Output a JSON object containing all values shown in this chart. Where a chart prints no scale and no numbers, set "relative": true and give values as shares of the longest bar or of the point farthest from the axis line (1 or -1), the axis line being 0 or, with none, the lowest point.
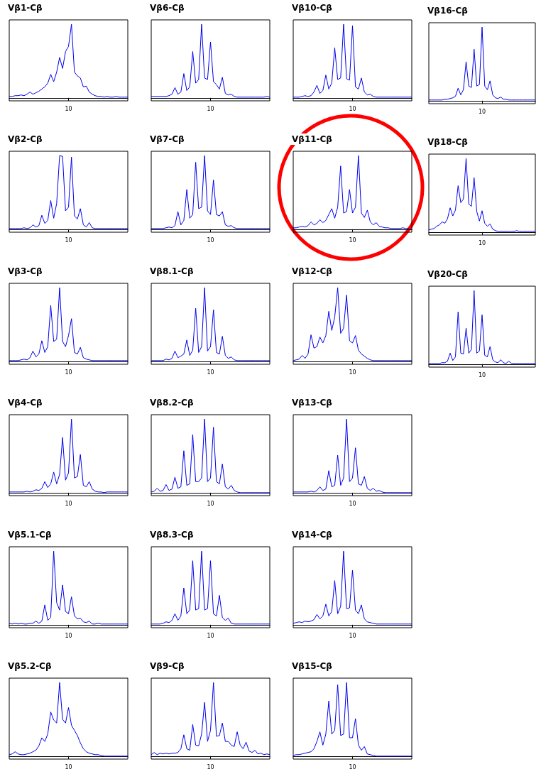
{
  "chart_data": [
    {
      "type": "line",
      "title": "Vβ1-Cβ",
      "relative": true,
      "marker": "none",
      "annotations": [
        "10"
      ],
      "categories": [
        null,
        null,
        null,
        null,
        null,
        null,
        null,
        null,
        null,
        null,
        null,
        null,
        null,
        null,
        null,
        null,
        null,
        null,
        null,
        null,
        null,
        null,
        null,
        null,
        null,
        null,
        null,
        null,
        null,
        null,
        null,
        null,
        null,
        null,
        null,
        null,
        null,
        null,
        null,
        null,
        null
      ],
      "series": [
        {
          "color": "#0000ee",
          "values": [
            0.02,
            0.02,
            0.03,
            0.03,
            0.04,
            0.03,
            0.05,
            0.08,
            0.05,
            0.07,
            0.09,
            0.12,
            0.15,
            0.2,
            0.32,
            0.22,
            0.35,
            0.55,
            0.4,
            0.63,
            0.7,
            1.0,
            0.35,
            0.3,
            0.27,
            0.15,
            0.16,
            0.08,
            0.05,
            0.03,
            0.02,
            0.02,
            0.01,
            0.02,
            0.01,
            0.01,
            0.02,
            0.01,
            0.01,
            0.01,
            0.01
          ]
        }
      ]
    },
    {
      "type": "line",
      "title": "Vβ6-Cβ",
      "relative": true,
      "marker": "none",
      "annotations": [
        "10"
      ],
      "categories": [
        null,
        null,
        null,
        null,
        null,
        null,
        null,
        null,
        null,
        null,
        null,
        null,
        null,
        null,
        null,
        null,
        null,
        null,
        null,
        null,
        null,
        null,
        null,
        null,
        null,
        null,
        null,
        null,
        null,
        null,
        null,
        null,
        null,
        null,
        null,
        null,
        null,
        null,
        null,
        null,
        null
      ],
      "series": [
        {
          "color": "#0000ee",
          "values": [
            0.02,
            0.02,
            0.02,
            0.02,
            0.02,
            0.02,
            0.03,
            0.05,
            0.14,
            0.05,
            0.08,
            0.33,
            0.1,
            0.15,
            0.63,
            0.2,
            0.25,
            1.0,
            0.27,
            0.25,
            0.76,
            0.22,
            0.18,
            0.12,
            0.28,
            0.06,
            0.04,
            0.05,
            0.02,
            0.01,
            0.01,
            0.01,
            0.01,
            0.01,
            0.01,
            0.01,
            0.01,
            0.01,
            0.01,
            0.02,
            0.01
          ]
        }
      ]
    },
    {
      "type": "line",
      "title": "Vβ10-Cβ",
      "relative": true,
      "marker": "none",
      "annotations": [
        "10"
      ],
      "categories": [
        null,
        null,
        null,
        null,
        null,
        null,
        null,
        null,
        null,
        null,
        null,
        null,
        null,
        null,
        null,
        null,
        null,
        null,
        null,
        null,
        null,
        null,
        null,
        null,
        null,
        null,
        null,
        null,
        null,
        null,
        null,
        null,
        null,
        null,
        null,
        null,
        null,
        null,
        null,
        null,
        null
      ],
      "series": [
        {
          "color": "#0000ee",
          "values": [
            0.01,
            0.01,
            0.01,
            0.02,
            0.03,
            0.02,
            0.03,
            0.08,
            0.17,
            0.06,
            0.1,
            0.31,
            0.12,
            0.2,
            0.68,
            0.25,
            0.27,
            1.0,
            0.26,
            0.24,
            0.98,
            0.15,
            0.12,
            0.27,
            0.08,
            0.04,
            0.05,
            0.02,
            0.01,
            0.01,
            0.01,
            0.01,
            0.01,
            0.01,
            0.01,
            0.01,
            0.01,
            0.01,
            0.01,
            0.01,
            0.01
          ]
        }
      ]
    },
    {
      "type": "line",
      "title": "Vβ16-Cβ",
      "relative": true,
      "marker": "none",
      "annotations": [
        "10"
      ],
      "categories": [
        null,
        null,
        null,
        null,
        null,
        null,
        null,
        null,
        null,
        null,
        null,
        null,
        null,
        null,
        null,
        null,
        null,
        null,
        null,
        null,
        null,
        null,
        null,
        null,
        null,
        null,
        null,
        null,
        null,
        null,
        null,
        null,
        null,
        null,
        null,
        null,
        null,
        null,
        null,
        null,
        null
      ],
      "series": [
        {
          "color": "#0000ee",
          "values": [
            0.01,
            0.01,
            0.01,
            0.01,
            0.01,
            0.01,
            0.02,
            0.02,
            0.03,
            0.04,
            0.06,
            0.17,
            0.08,
            0.15,
            0.53,
            0.2,
            0.18,
            0.7,
            0.2,
            0.22,
            1.0,
            0.2,
            0.15,
            0.27,
            0.08,
            0.04,
            0.03,
            0.05,
            0.02,
            0.02,
            0.01,
            0.01,
            0.01,
            0.01,
            0.01,
            0.01,
            0.01,
            0.01,
            0.01,
            0.01,
            0.01
          ]
        }
      ]
    },
    {
      "type": "line",
      "title": "Vβ2-Cβ",
      "relative": true,
      "marker": "none",
      "annotations": [
        "10"
      ],
      "categories": [
        null,
        null,
        null,
        null,
        null,
        null,
        null,
        null,
        null,
        null,
        null,
        null,
        null,
        null,
        null,
        null,
        null,
        null,
        null,
        null,
        null,
        null,
        null,
        null,
        null,
        null,
        null,
        null,
        null,
        null,
        null,
        null,
        null,
        null,
        null,
        null,
        null,
        null,
        null,
        null,
        null
      ],
      "series": [
        {
          "color": "#0000ee",
          "values": [
            0.01,
            0.01,
            0.01,
            0.01,
            0.01,
            0.02,
            0.01,
            0.02,
            0.06,
            0.03,
            0.05,
            0.19,
            0.08,
            0.12,
            0.39,
            0.15,
            0.35,
            1.0,
            0.99,
            0.25,
            0.3,
            0.98,
            0.18,
            0.14,
            0.28,
            0.06,
            0.03,
            0.09,
            0.02,
            0.01,
            0.01,
            0.01,
            0.01,
            0.01,
            0.01,
            0.01,
            0.01,
            0.01,
            0.01,
            0.01,
            0.01
          ]
        }
      ]
    },
    {
      "type": "line",
      "title": "Vβ7-Cβ",
      "relative": true,
      "marker": "none",
      "annotations": [
        "10"
      ],
      "categories": [
        null,
        null,
        null,
        null,
        null,
        null,
        null,
        null,
        null,
        null,
        null,
        null,
        null,
        null,
        null,
        null,
        null,
        null,
        null,
        null,
        null,
        null,
        null,
        null,
        null,
        null,
        null,
        null,
        null,
        null,
        null,
        null,
        null,
        null,
        null,
        null,
        null,
        null,
        null,
        null,
        null
      ],
      "series": [
        {
          "color": "#0000ee",
          "values": [
            0.01,
            0.01,
            0.01,
            0.01,
            0.01,
            0.02,
            0.03,
            0.02,
            0.05,
            0.24,
            0.06,
            0.12,
            0.54,
            0.15,
            0.2,
            0.91,
            0.28,
            0.3,
            1.0,
            0.25,
            0.2,
            0.67,
            0.2,
            0.18,
            0.24,
            0.06,
            0.04,
            0.05,
            0.02,
            0.01,
            0.01,
            0.01,
            0.01,
            0.01,
            0.01,
            0.01,
            0.01,
            0.01,
            0.01,
            0.01,
            0.01
          ]
        }
      ]
    },
    {
      "type": "line",
      "title": "Vβ11-Cβ",
      "relative": true,
      "marker": "none",
      "annotations": [
        "10"
      ],
      "categories": [
        null,
        null,
        null,
        null,
        null,
        null,
        null,
        null,
        null,
        null,
        null,
        null,
        null,
        null,
        null,
        null,
        null,
        null,
        null,
        null,
        null,
        null,
        null,
        null,
        null,
        null,
        null,
        null,
        null,
        null,
        null,
        null,
        null,
        null,
        null,
        null,
        null,
        null,
        null,
        null,
        null
      ],
      "series": [
        {
          "color": "#0000ee",
          "values": [
            0.02,
            0.02,
            0.03,
            0.04,
            0.03,
            0.05,
            0.1,
            0.06,
            0.08,
            0.13,
            0.09,
            0.12,
            0.2,
            0.28,
            0.15,
            0.3,
            0.86,
            0.22,
            0.24,
            0.54,
            0.22,
            0.3,
            1.0,
            0.22,
            0.16,
            0.26,
            0.1,
            0.06,
            0.09,
            0.04,
            0.03,
            0.02,
            0.02,
            0.01,
            0.01,
            0.01,
            0.01,
            0.02,
            0.01,
            0.01,
            null
          ]
        }
      ]
    },
    {
      "type": "line",
      "title": "Vβ18-Cβ",
      "relative": true,
      "marker": "none",
      "annotations": [
        "10"
      ],
      "categories": [
        null,
        null,
        null,
        null,
        null,
        null,
        null,
        null,
        null,
        null,
        null,
        null,
        null,
        null,
        null,
        null,
        null,
        null,
        null,
        null,
        null,
        null,
        null,
        null,
        null,
        null,
        null,
        null,
        null,
        null,
        null,
        null,
        null,
        null,
        null,
        null,
        null,
        null,
        null,
        null,
        null
      ],
      "series": [
        {
          "color": "#0000ee",
          "values": [
            0.03,
            0.04,
            0.05,
            0.08,
            0.1,
            0.14,
            0.12,
            0.18,
            0.33,
            0.22,
            0.3,
            0.63,
            0.4,
            0.45,
            1.0,
            0.38,
            0.35,
            0.74,
            0.28,
            0.15,
            0.29,
            0.12,
            0.08,
            0.11,
            0.04,
            0.02,
            0.01,
            0.01,
            0.01,
            0.01,
            0.01,
            0.01,
            0.01,
            0.02,
            0.01,
            0.01,
            0.01,
            0.01,
            0.01,
            0.01,
            0.01
          ]
        }
      ]
    },
    {
      "type": "line",
      "title": "Vβ3-Cβ",
      "relative": true,
      "marker": "none",
      "annotations": [
        "10"
      ],
      "categories": [
        null,
        null,
        null,
        null,
        null,
        null,
        null,
        null,
        null,
        null,
        null,
        null,
        null,
        null,
        null,
        null,
        null,
        null,
        null,
        null,
        null,
        null,
        null,
        null,
        null,
        null,
        null,
        null,
        null,
        null,
        null,
        null,
        null,
        null,
        null,
        null,
        null,
        null,
        null,
        null,
        null
      ],
      "series": [
        {
          "color": "#0000ee",
          "values": [
            0.01,
            0.01,
            0.01,
            0.01,
            0.02,
            0.03,
            0.02,
            0.05,
            0.14,
            0.06,
            0.1,
            0.28,
            0.12,
            0.2,
            0.76,
            0.27,
            0.3,
            1.0,
            0.27,
            0.2,
            0.35,
            0.58,
            0.12,
            0.1,
            0.19,
            0.05,
            0.03,
            0.02,
            0.01,
            0.01,
            0.01,
            0.01,
            0.01,
            0.01,
            0.01,
            0.01,
            0.01,
            0.01,
            0.01,
            0.01,
            0.01
          ]
        }
      ]
    },
    {
      "type": "line",
      "title": "Vβ8.1-Cβ",
      "relative": true,
      "marker": "none",
      "annotations": [
        "10"
      ],
      "categories": [
        null,
        null,
        null,
        null,
        null,
        null,
        null,
        null,
        null,
        null,
        null,
        null,
        null,
        null,
        null,
        null,
        null,
        null,
        null,
        null,
        null,
        null,
        null,
        null,
        null,
        null,
        null,
        null,
        null,
        null,
        null,
        null,
        null,
        null,
        null,
        null,
        null,
        null,
        null,
        null,
        null
      ],
      "series": [
        {
          "color": "#0000ee",
          "values": [
            0.01,
            0.01,
            0.01,
            0.01,
            0.01,
            0.03,
            0.02,
            0.04,
            0.14,
            0.05,
            0.07,
            0.1,
            0.29,
            0.08,
            0.15,
            0.72,
            0.12,
            0.2,
            1.0,
            0.14,
            0.2,
            0.7,
            0.12,
            0.1,
            0.34,
            0.08,
            0.04,
            0.06,
            0.02,
            0.01,
            0.01,
            0.01,
            0.01,
            0.01,
            0.01,
            0.01,
            0.01,
            0.01,
            0.01,
            0.01,
            0.01
          ]
        }
      ]
    },
    {
      "type": "line",
      "title": "Vβ12-Cβ",
      "relative": true,
      "marker": "none",
      "annotations": [
        "10"
      ],
      "categories": [
        null,
        null,
        null,
        null,
        null,
        null,
        null,
        null,
        null,
        null,
        null,
        null,
        null,
        null,
        null,
        null,
        null,
        null,
        null,
        null,
        null,
        null,
        null,
        null,
        null,
        null,
        null,
        null,
        null,
        null,
        null,
        null,
        null,
        null,
        null,
        null,
        null,
        null,
        null,
        null,
        null
      ],
      "series": [
        {
          "color": "#0000ee",
          "values": [
            0.01,
            0.02,
            0.03,
            0.08,
            0.04,
            0.1,
            0.36,
            0.18,
            0.2,
            0.33,
            0.25,
            0.35,
            0.68,
            0.42,
            0.6,
            1.0,
            0.38,
            0.45,
            0.9,
            0.28,
            0.25,
            0.35,
            0.15,
            0.1,
            0.07,
            0.04,
            0.02,
            0.01,
            0.01,
            0.01,
            0.01,
            0.01,
            0.01,
            0.01,
            0.01,
            0.01,
            0.01,
            0.01,
            0.01,
            0.01,
            0.01
          ]
        }
      ]
    },
    {
      "type": "line",
      "title": "Vβ20-Cβ",
      "relative": true,
      "marker": "none",
      "annotations": [
        "10"
      ],
      "categories": [
        null,
        null,
        null,
        null,
        null,
        null,
        null,
        null,
        null,
        null,
        null,
        null,
        null,
        null,
        null,
        null,
        null,
        null,
        null,
        null,
        null,
        null,
        null,
        null,
        null,
        null,
        null,
        null,
        null,
        null,
        null,
        null,
        null,
        null,
        null,
        null,
        null,
        null,
        null,
        null,
        null
      ],
      "series": [
        {
          "color": "#0000ee",
          "values": [
            0.01,
            0.01,
            0.01,
            0.01,
            0.01,
            0.02,
            0.02,
            0.04,
            0.15,
            0.05,
            0.1,
            0.71,
            0.15,
            0.14,
            0.49,
            0.15,
            0.2,
            1.0,
            0.15,
            0.18,
            0.67,
            0.12,
            0.1,
            0.24,
            0.06,
            0.03,
            0.02,
            0.06,
            0.02,
            0.01,
            0.04,
            0.01,
            0.01,
            0.01,
            0.01,
            0.01,
            0.01,
            0.01,
            0.01,
            0.01,
            0.01
          ]
        }
      ]
    },
    {
      "type": "line",
      "title": "Vβ4-Cβ",
      "relative": true,
      "marker": "none",
      "annotations": [
        "10"
      ],
      "categories": [
        null,
        null,
        null,
        null,
        null,
        null,
        null,
        null,
        null,
        null,
        null,
        null,
        null,
        null,
        null,
        null,
        null,
        null,
        null,
        null,
        null,
        null,
        null,
        null,
        null,
        null,
        null,
        null,
        null,
        null,
        null,
        null,
        null,
        null,
        null,
        null,
        null,
        null,
        null,
        null,
        null
      ],
      "series": [
        {
          "color": "#0000ee",
          "values": [
            0.01,
            0.01,
            0.01,
            0.01,
            0.01,
            0.01,
            0.02,
            0.01,
            0.02,
            0.04,
            0.03,
            0.06,
            0.15,
            0.07,
            0.12,
            0.28,
            0.12,
            0.25,
            0.75,
            0.17,
            0.27,
            1.0,
            0.2,
            0.22,
            0.52,
            0.1,
            0.08,
            0.15,
            0.05,
            0.02,
            0.01,
            0.01,
            0.0,
            0.01,
            0.01,
            0.01,
            0.01,
            0.01,
            0.01,
            0.01,
            0.01
          ]
        }
      ]
    },
    {
      "type": "line",
      "title": "Vβ8.2-Cβ",
      "relative": true,
      "marker": "none",
      "annotations": [
        "10"
      ],
      "categories": [
        null,
        null,
        null,
        null,
        null,
        null,
        null,
        null,
        null,
        null,
        null,
        null,
        null,
        null,
        null,
        null,
        null,
        null,
        null,
        null,
        null,
        null,
        null,
        null,
        null,
        null,
        null,
        null,
        null,
        null,
        null,
        null,
        null,
        null,
        null,
        null,
        null,
        null,
        null,
        null,
        null
      ],
      "series": [
        {
          "color": "#0000ee",
          "values": [
            0.01,
            0.02,
            0.06,
            0.02,
            0.03,
            0.11,
            0.03,
            0.05,
            0.21,
            0.06,
            0.08,
            0.57,
            0.1,
            0.12,
            0.79,
            0.15,
            0.15,
            0.2,
            1.0,
            0.15,
            0.2,
            0.89,
            0.15,
            0.12,
            0.39,
            0.08,
            0.05,
            0.1,
            0.03,
            0.01,
            0.0,
            0.0,
            0.0,
            0.0,
            0.0,
            0.0,
            0.0,
            0.0,
            0.0,
            0.0,
            0.0
          ]
        }
      ]
    },
    {
      "type": "line",
      "title": "Vβ13-Cβ",
      "relative": true,
      "marker": "none",
      "annotations": [
        "10"
      ],
      "categories": [
        null,
        null,
        null,
        null,
        null,
        null,
        null,
        null,
        null,
        null,
        null,
        null,
        null,
        null,
        null,
        null,
        null,
        null,
        null,
        null,
        null,
        null,
        null,
        null,
        null,
        null,
        null,
        null,
        null,
        null,
        null,
        null,
        null,
        null,
        null,
        null,
        null,
        null,
        null,
        null,
        null
      ],
      "series": [
        {
          "color": "#0000ee",
          "values": [
            0.01,
            0.01,
            0.01,
            0.01,
            0.01,
            0.01,
            0.02,
            0.01,
            0.03,
            0.08,
            0.03,
            0.05,
            0.3,
            0.08,
            0.1,
            0.51,
            0.1,
            0.2,
            1.0,
            0.15,
            0.2,
            0.61,
            0.12,
            0.1,
            0.22,
            0.06,
            0.03,
            0.06,
            0.02,
            0.03,
            0.01,
            0.0,
            0.0,
            0.0,
            0.0,
            0.0,
            0.0,
            0.0,
            0.0,
            0.0,
            0.0
          ]
        }
      ]
    },
    {
      "type": "line",
      "title": "Vβ5.1-Cβ",
      "relative": true,
      "marker": "none",
      "annotations": [
        "10"
      ],
      "categories": [
        null,
        null,
        null,
        null,
        null,
        null,
        null,
        null,
        null,
        null,
        null,
        null,
        null,
        null,
        null,
        null,
        null,
        null,
        null,
        null,
        null,
        null,
        null,
        null,
        null,
        null,
        null,
        null,
        null,
        null,
        null,
        null,
        null,
        null,
        null,
        null,
        null,
        null,
        null,
        null,
        null
      ],
      "series": [
        {
          "color": "#0000ee",
          "values": [
            0.02,
            0.01,
            0.02,
            0.01,
            0.02,
            0.01,
            0.01,
            0.02,
            0.02,
            0.05,
            0.02,
            0.05,
            0.27,
            0.06,
            0.1,
            1.0,
            0.3,
            0.2,
            0.54,
            0.18,
            0.15,
            0.38,
            0.12,
            0.08,
            0.09,
            0.04,
            0.03,
            0.05,
            0.01,
            0.01,
            0.02,
            0.01,
            0.01,
            0.01,
            0.01,
            0.01,
            0.01,
            0.01,
            0.01,
            0.01,
            0.01
          ]
        }
      ]
    },
    {
      "type": "line",
      "title": "Vβ8.3-Cβ",
      "relative": true,
      "marker": "none",
      "annotations": [
        "10"
      ],
      "categories": [
        null,
        null,
        null,
        null,
        null,
        null,
        null,
        null,
        null,
        null,
        null,
        null,
        null,
        null,
        null,
        null,
        null,
        null,
        null,
        null,
        null,
        null,
        null,
        null,
        null,
        null,
        null,
        null,
        null,
        null,
        null,
        null,
        null,
        null,
        null,
        null,
        null,
        null,
        null,
        null,
        null
      ],
      "series": [
        {
          "color": "#0000ee",
          "values": [
            0.01,
            0.01,
            0.01,
            0.01,
            0.02,
            0.04,
            0.03,
            0.06,
            0.15,
            0.06,
            0.12,
            0.5,
            0.15,
            0.2,
            0.87,
            0.2,
            0.22,
            1.0,
            0.2,
            0.22,
            0.87,
            0.15,
            0.12,
            0.4,
            0.1,
            0.06,
            0.09,
            0.02,
            0.01,
            0.01,
            0.01,
            0.01,
            0.01,
            0.01,
            0.01,
            0.01,
            0.01,
            0.01,
            0.01,
            0.01,
            0.01
          ]
        }
      ]
    },
    {
      "type": "line",
      "title": "Vβ14-Cβ",
      "relative": true,
      "marker": "none",
      "annotations": [
        "10"
      ],
      "categories": [
        null,
        null,
        null,
        null,
        null,
        null,
        null,
        null,
        null,
        null,
        null,
        null,
        null,
        null,
        null,
        null,
        null,
        null,
        null,
        null,
        null,
        null,
        null,
        null,
        null,
        null,
        null,
        null,
        null,
        null,
        null,
        null,
        null,
        null,
        null,
        null,
        null,
        null,
        null,
        null,
        null
      ],
      "series": [
        {
          "color": "#0000ee",
          "values": [
            0.02,
            0.03,
            0.04,
            0.03,
            0.05,
            0.04,
            0.05,
            0.07,
            0.14,
            0.08,
            0.12,
            0.28,
            0.12,
            0.18,
            0.6,
            0.15,
            0.25,
            1.0,
            0.22,
            0.23,
            0.74,
            0.2,
            0.15,
            0.27,
            0.08,
            0.04,
            0.03,
            0.02,
            0.01,
            0.01,
            0.01,
            0.01,
            0.01,
            0.01,
            0.01,
            0.01,
            0.01,
            0.01,
            0.01,
            0.01,
            0.01
          ]
        }
      ]
    },
    {
      "type": "line",
      "title": "Vβ5.2-Cβ",
      "relative": true,
      "marker": "none",
      "annotations": [
        "10"
      ],
      "categories": [
        null,
        null,
        null,
        null,
        null,
        null,
        null,
        null,
        null,
        null,
        null,
        null,
        null,
        null,
        null,
        null,
        null,
        null,
        null,
        null,
        null,
        null,
        null,
        null,
        null,
        null,
        null,
        null,
        null,
        null,
        null,
        null,
        null,
        null,
        null,
        null,
        null,
        null,
        null,
        null,
        null
      ],
      "series": [
        {
          "color": "#0000ee",
          "values": [
            0.02,
            0.03,
            0.06,
            0.03,
            0.02,
            0.02,
            0.03,
            0.04,
            0.06,
            0.08,
            0.14,
            0.25,
            0.2,
            0.3,
            0.6,
            0.49,
            0.45,
            1.0,
            0.5,
            0.45,
            0.66,
            0.42,
            0.35,
            0.28,
            0.18,
            0.1,
            0.06,
            0.04,
            0.03,
            0.02,
            0.02,
            0.01,
            0.0,
            0.0,
            0.0,
            0.0,
            0.0,
            0.0,
            0.0,
            0.0,
            0.0
          ]
        }
      ]
    },
    {
      "type": "line",
      "title": "Vβ9-Cβ",
      "relative": true,
      "marker": "none",
      "annotations": [
        "10"
      ],
      "categories": [
        null,
        null,
        null,
        null,
        null,
        null,
        null,
        null,
        null,
        null,
        null,
        null,
        null,
        null,
        null,
        null,
        null,
        null,
        null,
        null,
        null,
        null,
        null,
        null,
        null,
        null,
        null,
        null,
        null,
        null,
        null,
        null,
        null,
        null,
        null,
        null,
        null,
        null,
        null,
        null,
        null
      ],
      "series": [
        {
          "color": "#0000ee",
          "values": [
            0.02,
            0.05,
            0.02,
            0.04,
            0.03,
            0.04,
            0.03,
            0.04,
            0.04,
            0.05,
            0.1,
            0.29,
            0.1,
            0.08,
            0.43,
            0.15,
            0.14,
            0.3,
            0.73,
            0.2,
            0.35,
            1.0,
            0.27,
            0.28,
            0.45,
            0.2,
            0.2,
            0.15,
            0.13,
            0.33,
            0.15,
            0.1,
            0.19,
            0.07,
            0.05,
            0.08,
            0.03,
            0.04,
            0.02,
            0.03,
            0.02
          ]
        }
      ]
    },
    {
      "type": "line",
      "title": "Vβ15-Cβ",
      "relative": true,
      "marker": "none",
      "annotations": [
        "10"
      ],
      "categories": [
        null,
        null,
        null,
        null,
        null,
        null,
        null,
        null,
        null,
        null,
        null,
        null,
        null,
        null,
        null,
        null,
        null,
        null,
        null,
        null,
        null,
        null,
        null,
        null,
        null,
        null,
        null,
        null,
        null,
        null,
        null,
        null,
        null,
        null,
        null,
        null,
        null,
        null,
        null,
        null,
        null
      ],
      "series": [
        {
          "color": "#0000ee",
          "values": [
            0.01,
            0.02,
            0.02,
            0.03,
            0.04,
            0.05,
            0.06,
            0.1,
            0.2,
            0.33,
            0.15,
            0.3,
            0.75,
            0.3,
            0.35,
            0.97,
            0.28,
            0.3,
            1.0,
            0.25,
            0.25,
            0.51,
            0.15,
            0.08,
            0.13,
            0.03,
            0.02,
            0.01,
            0.0,
            0.0,
            0.0,
            0.0,
            0.0,
            0.0,
            0.0,
            0.0,
            0.0,
            0.0,
            0.0,
            0.0,
            0.0
          ]
        }
      ]
    }
  ]
}
